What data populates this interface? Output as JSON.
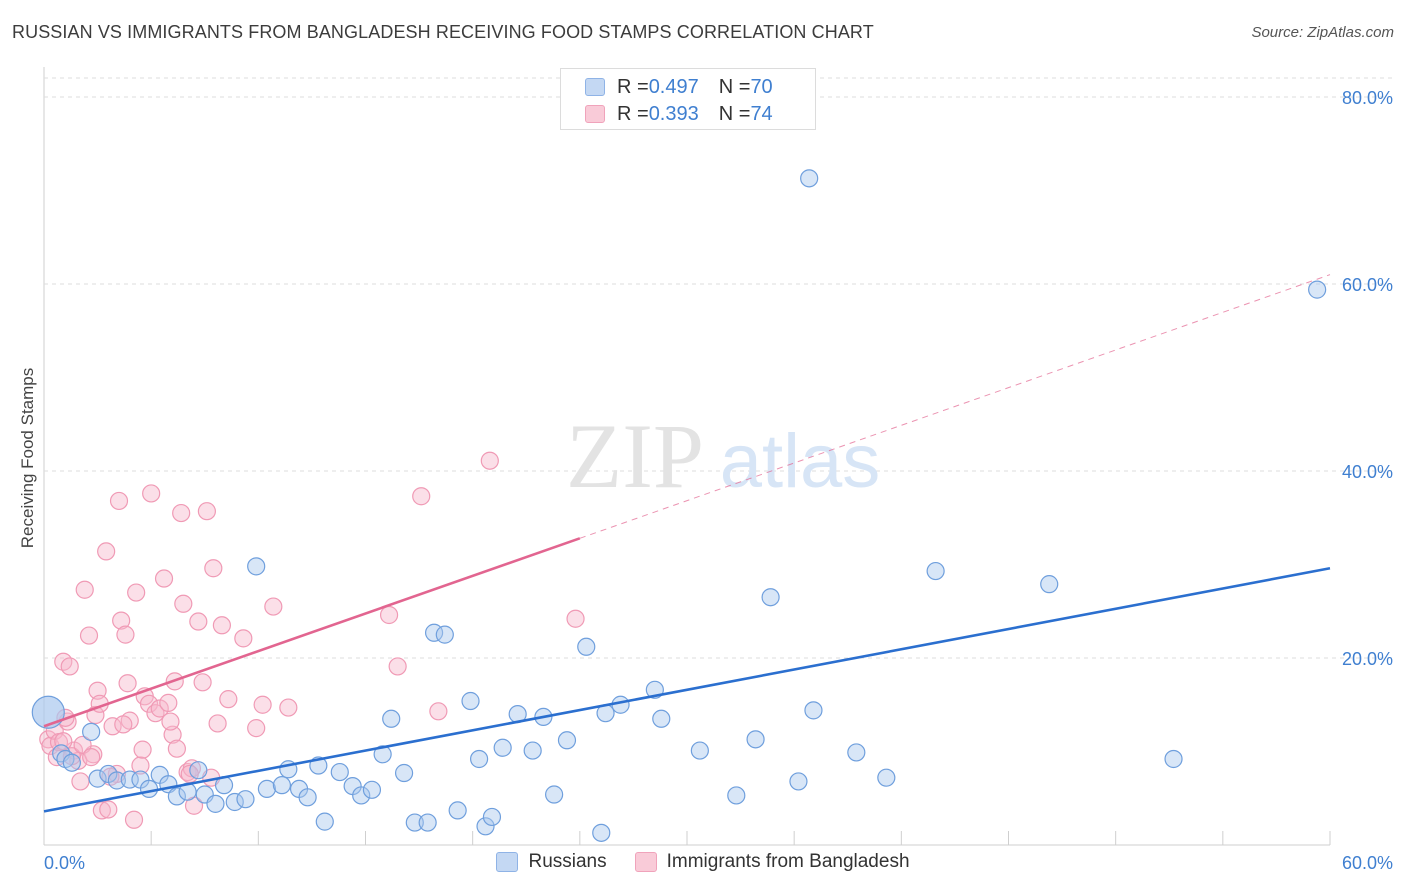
{
  "header": {
    "title": "RUSSIAN VS IMMIGRANTS FROM BANGLADESH RECEIVING FOOD STAMPS CORRELATION CHART",
    "source": "Source: ZipAtlas.com"
  },
  "watermark": {
    "zip": "ZIP",
    "atlas": "atlas"
  },
  "stats": [
    {
      "r_label": "R = ",
      "r": "0.497",
      "n_label": "N = ",
      "n": "70",
      "color": "#a9c7ee"
    },
    {
      "r_label": "R = ",
      "r": "0.393",
      "n_label": "N = ",
      "n": "74",
      "color": "#f6b8cb"
    }
  ],
  "chart_data": {
    "type": "scatter",
    "title": "RUSSIAN VS IMMIGRANTS FROM BANGLADESH RECEIVING FOOD STAMPS CORRELATION CHART",
    "ylabel": "Receiving Food Stamps",
    "xlabel": "",
    "xlim": [
      0,
      60
    ],
    "ylim": [
      0,
      85
    ],
    "x_ticks": [
      "0.0%",
      "60.0%"
    ],
    "y_ticks": [
      {
        "value": 20,
        "label": "20.0%"
      },
      {
        "value": 40,
        "label": "40.0%"
      },
      {
        "value": 60,
        "label": "60.0%"
      },
      {
        "value": 80,
        "label": "80.0%"
      }
    ],
    "grid": true,
    "legend_position": "top-center",
    "series": [
      {
        "name": "Russians",
        "color": "#6f9fdd",
        "fill": "#a9c7ee",
        "trend": {
          "x0": 0,
          "y0": 3.6,
          "x1": 60,
          "y1": 29.6,
          "style": "solid",
          "color": "#2b6fcf"
        },
        "points": [
          [
            0.2,
            14.2
          ],
          [
            0.8,
            9.8
          ],
          [
            1.0,
            9.2
          ],
          [
            1.3,
            8.8
          ],
          [
            2.2,
            12.1
          ],
          [
            2.5,
            7.1
          ],
          [
            3.0,
            7.6
          ],
          [
            3.4,
            6.9
          ],
          [
            4.0,
            7.0
          ],
          [
            4.5,
            7.0
          ],
          [
            4.9,
            6.0
          ],
          [
            5.4,
            7.5
          ],
          [
            5.8,
            6.5
          ],
          [
            6.2,
            5.2
          ],
          [
            6.7,
            5.7
          ],
          [
            7.2,
            8.0
          ],
          [
            7.5,
            5.4
          ],
          [
            8.0,
            4.4
          ],
          [
            8.4,
            6.4
          ],
          [
            8.9,
            4.6
          ],
          [
            9.4,
            4.9
          ],
          [
            9.9,
            29.8
          ],
          [
            10.4,
            6.0
          ],
          [
            11.1,
            6.4
          ],
          [
            11.4,
            8.1
          ],
          [
            11.9,
            6.0
          ],
          [
            12.3,
            5.1
          ],
          [
            12.8,
            8.5
          ],
          [
            13.1,
            2.5
          ],
          [
            13.8,
            7.8
          ],
          [
            14.4,
            6.3
          ],
          [
            14.8,
            5.3
          ],
          [
            15.3,
            5.9
          ],
          [
            15.8,
            9.7
          ],
          [
            16.2,
            13.5
          ],
          [
            16.8,
            7.7
          ],
          [
            17.3,
            2.4
          ],
          [
            17.9,
            2.4
          ],
          [
            18.2,
            22.7
          ],
          [
            18.7,
            22.5
          ],
          [
            19.3,
            3.7
          ],
          [
            19.9,
            15.4
          ],
          [
            20.3,
            9.2
          ],
          [
            20.6,
            2.0
          ],
          [
            20.9,
            3.0
          ],
          [
            21.4,
            10.4
          ],
          [
            22.1,
            14.0
          ],
          [
            22.8,
            10.1
          ],
          [
            23.3,
            13.7
          ],
          [
            23.8,
            5.4
          ],
          [
            24.4,
            11.2
          ],
          [
            25.3,
            21.2
          ],
          [
            26.0,
            1.3
          ],
          [
            26.2,
            14.1
          ],
          [
            26.9,
            15.0
          ],
          [
            28.5,
            16.6
          ],
          [
            28.8,
            13.5
          ],
          [
            30.6,
            10.1
          ],
          [
            32.3,
            5.3
          ],
          [
            33.2,
            11.3
          ],
          [
            33.9,
            26.5
          ],
          [
            35.2,
            6.8
          ],
          [
            35.7,
            71.3
          ],
          [
            35.9,
            14.4
          ],
          [
            37.9,
            9.9
          ],
          [
            39.3,
            7.2
          ],
          [
            41.6,
            29.3
          ],
          [
            46.9,
            27.9
          ],
          [
            52.7,
            9.2
          ],
          [
            59.4,
            59.4
          ]
        ]
      },
      {
        "name": "Immigrants from Bangladesh",
        "color": "#f09ab5",
        "fill": "#f6b8cb",
        "trend": {
          "x0": 0,
          "y0": 12.7,
          "x1": 25.0,
          "y1": 32.8,
          "style": "solid",
          "color": "#e26590",
          "extend_to_x": 60,
          "extend_y": 61.0,
          "extend_style": "dashed"
        },
        "points": [
          [
            0.2,
            11.3
          ],
          [
            0.3,
            10.6
          ],
          [
            0.5,
            12.2
          ],
          [
            0.6,
            9.4
          ],
          [
            0.7,
            11.0
          ],
          [
            0.9,
            19.6
          ],
          [
            1.1,
            13.2
          ],
          [
            1.2,
            19.1
          ],
          [
            1.4,
            10.1
          ],
          [
            1.6,
            9.0
          ],
          [
            1.7,
            6.8
          ],
          [
            1.9,
            27.3
          ],
          [
            2.1,
            22.4
          ],
          [
            2.3,
            9.7
          ],
          [
            2.4,
            13.9
          ],
          [
            2.5,
            16.5
          ],
          [
            2.6,
            15.1
          ],
          [
            2.7,
            3.7
          ],
          [
            2.9,
            31.4
          ],
          [
            3.0,
            3.8
          ],
          [
            3.2,
            12.7
          ],
          [
            3.4,
            7.6
          ],
          [
            3.5,
            36.8
          ],
          [
            3.6,
            24.0
          ],
          [
            3.8,
            22.5
          ],
          [
            3.9,
            17.3
          ],
          [
            4.0,
            13.3
          ],
          [
            4.2,
            2.7
          ],
          [
            4.3,
            27.0
          ],
          [
            4.5,
            8.5
          ],
          [
            4.7,
            15.9
          ],
          [
            4.9,
            15.1
          ],
          [
            5.0,
            37.6
          ],
          [
            5.2,
            14.1
          ],
          [
            5.4,
            14.6
          ],
          [
            5.6,
            28.5
          ],
          [
            5.8,
            15.2
          ],
          [
            6.0,
            11.8
          ],
          [
            6.1,
            17.5
          ],
          [
            6.2,
            10.3
          ],
          [
            6.4,
            35.5
          ],
          [
            6.5,
            25.8
          ],
          [
            6.7,
            7.8
          ],
          [
            6.9,
            8.2
          ],
          [
            7.0,
            4.2
          ],
          [
            7.2,
            23.9
          ],
          [
            7.4,
            17.4
          ],
          [
            7.6,
            35.7
          ],
          [
            7.8,
            7.2
          ],
          [
            7.9,
            29.6
          ],
          [
            8.1,
            13.0
          ],
          [
            8.3,
            23.5
          ],
          [
            8.6,
            15.6
          ],
          [
            9.3,
            22.1
          ],
          [
            9.9,
            12.5
          ],
          [
            10.2,
            15.0
          ],
          [
            10.7,
            25.5
          ],
          [
            11.4,
            14.7
          ],
          [
            16.1,
            24.6
          ],
          [
            16.5,
            19.1
          ],
          [
            17.6,
            37.3
          ],
          [
            18.4,
            14.3
          ],
          [
            20.8,
            41.1
          ],
          [
            24.8,
            24.2
          ],
          [
            0.9,
            11.1
          ],
          [
            1.3,
            9.5
          ],
          [
            1.8,
            10.7
          ],
          [
            2.2,
            9.4
          ],
          [
            3.1,
            7.3
          ],
          [
            3.7,
            12.9
          ],
          [
            4.6,
            10.2
          ],
          [
            5.9,
            13.2
          ],
          [
            6.8,
            7.6
          ],
          [
            1.0,
            13.6
          ]
        ]
      }
    ]
  },
  "legend": {
    "russians_label": "Russians",
    "bangladesh_label": "Immigrants from Bangladesh"
  }
}
